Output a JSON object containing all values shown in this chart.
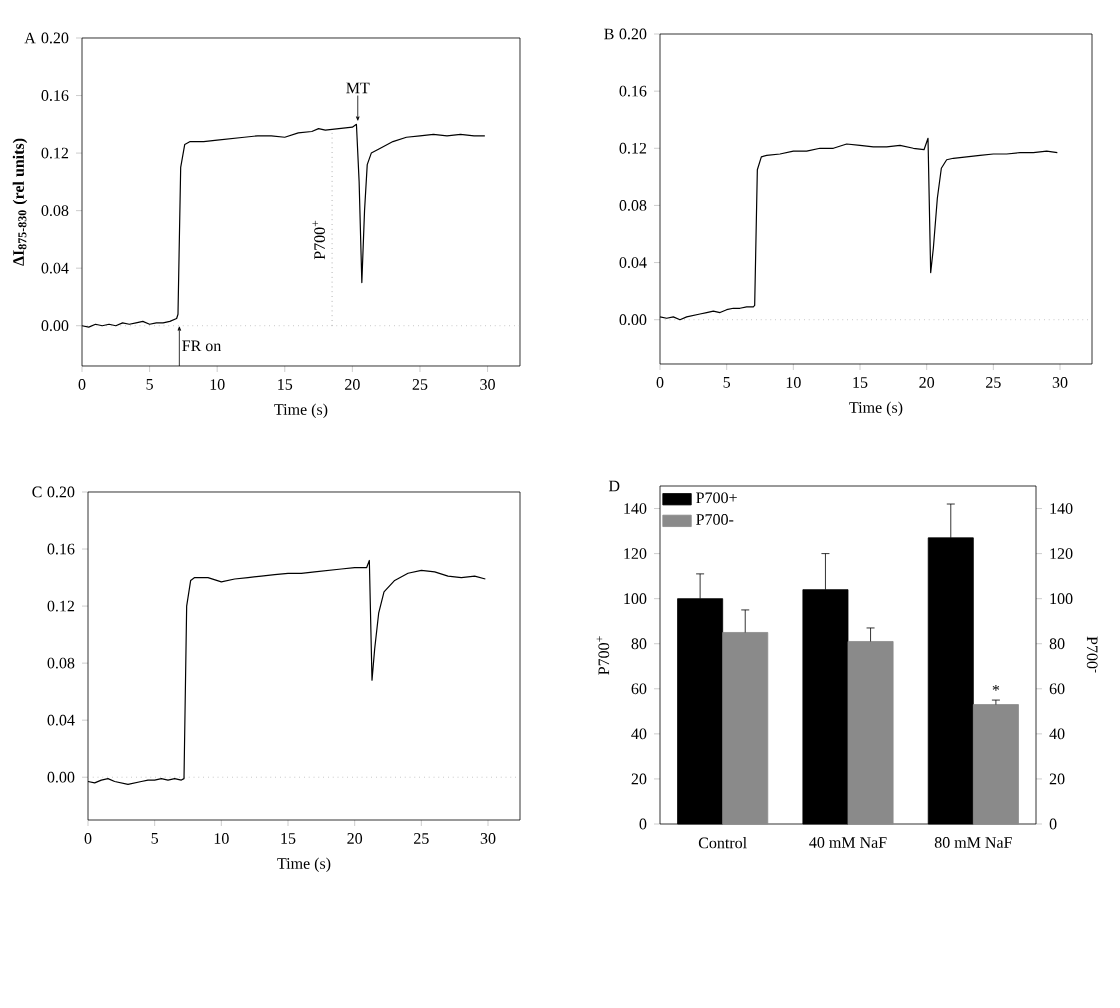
{
  "chart_data": [
    {
      "type": "line",
      "title": "A",
      "xlabel": "Time (s)",
      "ylabel": "ΔI$_{875-830}$ (rel units)",
      "color": "#000000",
      "x": [
        0,
        0.5,
        1,
        1.5,
        2,
        2.5,
        3,
        3.5,
        4,
        4.5,
        5,
        5.5,
        6,
        6.5,
        7,
        7.1,
        7.3,
        7.6,
        8,
        9,
        10,
        11,
        12,
        13,
        14,
        15,
        16,
        17,
        17.5,
        18,
        19,
        20,
        20.3,
        20.5,
        20.7,
        20.9,
        21.1,
        21.4,
        22,
        23,
        24,
        25,
        26,
        27,
        28,
        29,
        29.8
      ],
      "values": [
        0.0,
        -0.001,
        0.001,
        0.0,
        0.001,
        0.0,
        0.002,
        0.001,
        0.002,
        0.003,
        0.001,
        0.002,
        0.002,
        0.003,
        0.005,
        0.008,
        0.11,
        0.126,
        0.128,
        0.128,
        0.129,
        0.13,
        0.131,
        0.132,
        0.132,
        0.131,
        0.134,
        0.135,
        0.137,
        0.136,
        0.137,
        0.138,
        0.14,
        0.1,
        0.03,
        0.08,
        0.112,
        0.12,
        0.123,
        0.128,
        0.131,
        0.132,
        0.133,
        0.132,
        0.133,
        0.132,
        0.132
      ],
      "xlim": [
        0,
        32.4
      ],
      "ylim": [
        -0.028,
        0.2
      ],
      "xticks": [
        0,
        5,
        10,
        15,
        20,
        25,
        30
      ],
      "yticks": [
        {
          "value": 0,
          "label": "0.00"
        },
        {
          "value": 0.04,
          "label": "0.04"
        },
        {
          "value": 0.08,
          "label": "0.08"
        },
        {
          "value": 0.12,
          "label": "0.12"
        },
        {
          "value": 0.16,
          "label": "0.16"
        },
        {
          "value": 0.2,
          "label": "0.20"
        }
      ],
      "ref_lines": [
        {
          "axis": "y",
          "value": 0,
          "color": "#aaaaaa",
          "line_style": "dotted"
        },
        {
          "axis": "x",
          "value": 18.5,
          "label": "P700$^{+}$",
          "color": "#888888",
          "line_style": "dotted"
        }
      ],
      "annotations": [
        {
          "text": "FR on",
          "x": 7.2,
          "y": 0
        },
        {
          "text": "MT",
          "x": 20.4,
          "y": 0.142
        }
      ]
    },
    {
      "type": "line",
      "title": "B",
      "xlabel": "Time (s)",
      "color": "#000000",
      "x": [
        0,
        0.5,
        1,
        1.5,
        2,
        2.5,
        3,
        3.5,
        4,
        4.5,
        5,
        5.5,
        6,
        6.5,
        7,
        7.1,
        7.3,
        7.6,
        8,
        9,
        10,
        11,
        12,
        13,
        14,
        15,
        16,
        17,
        18,
        19,
        19.8,
        20.1,
        20.3,
        20.5,
        20.8,
        21.1,
        21.5,
        22,
        23,
        24,
        25,
        26,
        27,
        28,
        29,
        29.8
      ],
      "values": [
        0.002,
        0.001,
        0.002,
        0.0,
        0.002,
        0.003,
        0.004,
        0.005,
        0.006,
        0.005,
        0.007,
        0.008,
        0.008,
        0.009,
        0.009,
        0.01,
        0.105,
        0.114,
        0.115,
        0.116,
        0.118,
        0.118,
        0.12,
        0.12,
        0.123,
        0.122,
        0.121,
        0.121,
        0.122,
        0.12,
        0.119,
        0.127,
        0.033,
        0.05,
        0.085,
        0.106,
        0.112,
        0.113,
        0.114,
        0.115,
        0.116,
        0.116,
        0.117,
        0.117,
        0.118,
        0.117
      ],
      "xlim": [
        0,
        32.4
      ],
      "ylim": [
        -0.031,
        0.2
      ],
      "xticks": [
        0,
        5,
        10,
        15,
        20,
        25,
        30
      ],
      "yticks": [
        {
          "value": 0,
          "label": "0.00"
        },
        {
          "value": 0.04,
          "label": "0.04"
        },
        {
          "value": 0.08,
          "label": "0.08"
        },
        {
          "value": 0.12,
          "label": "0.12"
        },
        {
          "value": 0.16,
          "label": "0.16"
        },
        {
          "value": 0.2,
          "label": "0.20"
        }
      ],
      "ref_lines": [
        {
          "axis": "y",
          "value": 0,
          "color": "#aaaaaa",
          "line_style": "dotted"
        }
      ]
    },
    {
      "type": "line",
      "title": "C",
      "xlabel": "Time (s)",
      "color": "#000000",
      "x": [
        0,
        0.5,
        1,
        1.5,
        2,
        2.5,
        3,
        3.5,
        4,
        4.5,
        5,
        5.5,
        6,
        6.5,
        7,
        7.2,
        7.4,
        7.7,
        8,
        9,
        10,
        11,
        12,
        13,
        14,
        15,
        16,
        17,
        18,
        19,
        20,
        20.9,
        21.1,
        21.3,
        21.5,
        21.8,
        22.2,
        23,
        24,
        25,
        26,
        27,
        28,
        29,
        29.8
      ],
      "values": [
        -0.003,
        -0.004,
        -0.002,
        -0.001,
        -0.003,
        -0.004,
        -0.005,
        -0.004,
        -0.003,
        -0.002,
        -0.002,
        -0.001,
        -0.002,
        -0.001,
        -0.002,
        -0.001,
        0.12,
        0.138,
        0.14,
        0.14,
        0.137,
        0.139,
        0.14,
        0.141,
        0.142,
        0.143,
        0.143,
        0.144,
        0.145,
        0.146,
        0.147,
        0.147,
        0.152,
        0.068,
        0.09,
        0.115,
        0.13,
        0.138,
        0.143,
        0.145,
        0.144,
        0.141,
        0.14,
        0.141,
        0.139
      ],
      "xlim": [
        0,
        32.4
      ],
      "ylim": [
        -0.03,
        0.2
      ],
      "xticks": [
        0,
        5,
        10,
        15,
        20,
        25,
        30
      ],
      "yticks": [
        {
          "value": 0,
          "label": "0.00"
        },
        {
          "value": 0.04,
          "label": "0.04"
        },
        {
          "value": 0.08,
          "label": "0.08"
        },
        {
          "value": 0.12,
          "label": "0.12"
        },
        {
          "value": 0.16,
          "label": "0.16"
        },
        {
          "value": 0.2,
          "label": "0.20"
        }
      ],
      "ref_lines": [
        {
          "axis": "y",
          "value": 0,
          "color": "#aaaaaa",
          "line_style": "dotted"
        }
      ]
    },
    {
      "type": "bar",
      "title": "D",
      "ylabel": "P700$^{+}$",
      "y2label": "P700$^{-}$",
      "legend": "top left",
      "categories": [
        "Control",
        "40 mM NaF",
        "80 mM NaF"
      ],
      "series": [
        {
          "name": "P700+",
          "color": "#000000",
          "values": [
            100,
            104,
            127
          ],
          "errors": [
            11,
            16,
            15
          ]
        },
        {
          "name": "P700-",
          "color": "#8a8a8a",
          "values": [
            85,
            81,
            53
          ],
          "errors": [
            10,
            6,
            2
          ]
        }
      ],
      "ylim": [
        0,
        150
      ],
      "yticks": [
        0,
        20,
        40,
        60,
        80,
        100,
        120,
        140
      ],
      "y2lim": [
        0,
        150
      ],
      "y2ticks": [
        0,
        20,
        40,
        60,
        80,
        100,
        120,
        140
      ],
      "annotations": [
        {
          "text": "*",
          "x": "80 mM NaF",
          "y": 56
        }
      ]
    }
  ]
}
